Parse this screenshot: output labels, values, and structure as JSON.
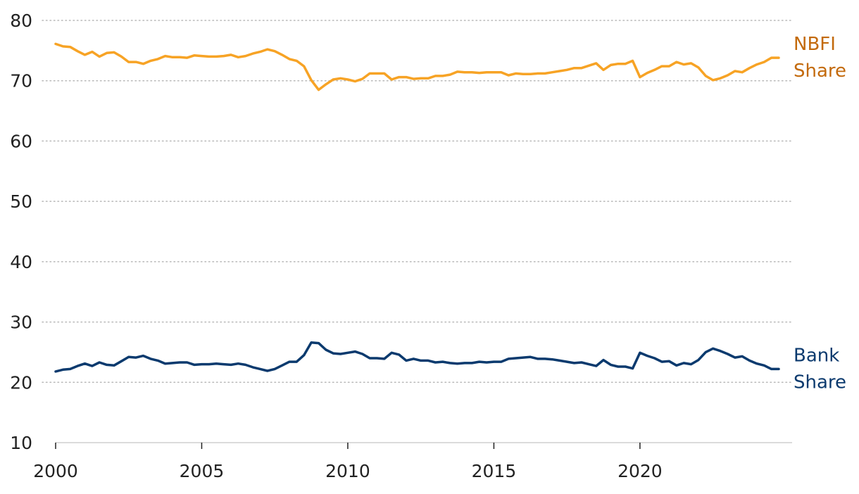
{
  "chart_data": {
    "type": "line",
    "title": "",
    "xlabel": "",
    "ylabel": "",
    "xlim": [
      2000,
      2024.75
    ],
    "ylim": [
      10,
      80
    ],
    "x_ticks": [
      2000,
      2005,
      2010,
      2015,
      2020
    ],
    "y_ticks": [
      10,
      20,
      30,
      40,
      50,
      60,
      70,
      80
    ],
    "grid": "horizontal dotted",
    "legend": "direct labels at right end of lines",
    "series": [
      {
        "name": "NBFI Share",
        "label_lines": [
          "NBFI",
          "Share"
        ],
        "color": "#F7A325",
        "label_color": "#C36A0C",
        "x": [
          2000,
          2000.25,
          2000.5,
          2000.75,
          2001,
          2001.25,
          2001.5,
          2001.75,
          2002,
          2002.25,
          2002.5,
          2002.75,
          2003,
          2003.25,
          2003.5,
          2003.75,
          2004,
          2004.25,
          2004.5,
          2004.75,
          2005,
          2005.25,
          2005.5,
          2005.75,
          2006,
          2006.25,
          2006.5,
          2006.75,
          2007,
          2007.25,
          2007.5,
          2007.75,
          2008,
          2008.25,
          2008.5,
          2008.75,
          2009,
          2009.25,
          2009.5,
          2009.75,
          2010,
          2010.25,
          2010.5,
          2010.75,
          2011,
          2011.25,
          2011.5,
          2011.75,
          2012,
          2012.25,
          2012.5,
          2012.75,
          2013,
          2013.25,
          2013.5,
          2013.75,
          2014,
          2014.25,
          2014.5,
          2014.75,
          2015,
          2015.25,
          2015.5,
          2015.75,
          2016,
          2016.25,
          2016.5,
          2016.75,
          2017,
          2017.25,
          2017.5,
          2017.75,
          2018,
          2018.25,
          2018.5,
          2018.75,
          2019,
          2019.25,
          2019.5,
          2019.75,
          2020,
          2020.25,
          2020.5,
          2020.75,
          2021,
          2021.25,
          2021.5,
          2021.75,
          2022,
          2022.25,
          2022.5,
          2022.75,
          2023,
          2023.25,
          2023.5,
          2023.75,
          2024,
          2024.25,
          2024.5,
          2024.75
        ],
        "values": [
          76.1,
          75.7,
          75.6,
          74.9,
          74.3,
          74.8,
          74.0,
          74.6,
          74.7,
          74.0,
          73.1,
          73.1,
          72.8,
          73.3,
          73.6,
          74.1,
          73.9,
          73.9,
          73.8,
          74.2,
          74.1,
          74.0,
          74.0,
          74.1,
          74.3,
          73.9,
          74.1,
          74.5,
          74.8,
          75.2,
          74.9,
          74.3,
          73.6,
          73.3,
          72.4,
          70.1,
          68.5,
          69.4,
          70.2,
          70.4,
          70.2,
          69.9,
          70.3,
          71.2,
          71.2,
          71.2,
          70.2,
          70.6,
          70.6,
          70.3,
          70.4,
          70.4,
          70.8,
          70.8,
          71.0,
          71.5,
          71.4,
          71.4,
          71.3,
          71.4,
          71.4,
          71.4,
          70.9,
          71.2,
          71.1,
          71.1,
          71.2,
          71.2,
          71.4,
          71.6,
          71.8,
          72.1,
          72.1,
          72.5,
          72.9,
          71.8,
          72.6,
          72.8,
          72.8,
          73.3,
          70.6,
          71.3,
          71.8,
          72.4,
          72.4,
          73.1,
          72.7,
          72.9,
          72.2,
          70.8,
          70.1,
          70.4,
          70.9,
          71.6,
          71.4,
          72.1,
          72.7,
          73.1,
          73.8,
          73.8
        ]
      },
      {
        "name": "Bank Share",
        "label_lines": [
          "Bank",
          "Share"
        ],
        "color": "#0B3A6E",
        "label_color": "#0B3A6E",
        "x": [
          2000,
          2000.25,
          2000.5,
          2000.75,
          2001,
          2001.25,
          2001.5,
          2001.75,
          2002,
          2002.25,
          2002.5,
          2002.75,
          2003,
          2003.25,
          2003.5,
          2003.75,
          2004,
          2004.25,
          2004.5,
          2004.75,
          2005,
          2005.25,
          2005.5,
          2005.75,
          2006,
          2006.25,
          2006.5,
          2006.75,
          2007,
          2007.25,
          2007.5,
          2007.75,
          2008,
          2008.25,
          2008.5,
          2008.75,
          2009,
          2009.25,
          2009.5,
          2009.75,
          2010,
          2010.25,
          2010.5,
          2010.75,
          2011,
          2011.25,
          2011.5,
          2011.75,
          2012,
          2012.25,
          2012.5,
          2012.75,
          2013,
          2013.25,
          2013.5,
          2013.75,
          2014,
          2014.25,
          2014.5,
          2014.75,
          2015,
          2015.25,
          2015.5,
          2015.75,
          2016,
          2016.25,
          2016.5,
          2016.75,
          2017,
          2017.25,
          2017.5,
          2017.75,
          2018,
          2018.25,
          2018.5,
          2018.75,
          2019,
          2019.25,
          2019.5,
          2019.75,
          2020,
          2020.25,
          2020.5,
          2020.75,
          2021,
          2021.25,
          2021.5,
          2021.75,
          2022,
          2022.25,
          2022.5,
          2022.75,
          2023,
          2023.25,
          2023.5,
          2023.75,
          2024,
          2024.25,
          2024.5,
          2024.75
        ],
        "values": [
          21.8,
          22.1,
          22.2,
          22.7,
          23.1,
          22.7,
          23.3,
          22.9,
          22.8,
          23.5,
          24.2,
          24.1,
          24.4,
          23.9,
          23.6,
          23.1,
          23.2,
          23.3,
          23.3,
          22.9,
          23.0,
          23.0,
          23.1,
          23.0,
          22.9,
          23.1,
          22.9,
          22.5,
          22.2,
          21.9,
          22.2,
          22.8,
          23.4,
          23.4,
          24.5,
          26.6,
          26.5,
          25.4,
          24.8,
          24.7,
          24.9,
          25.1,
          24.7,
          24.0,
          24.0,
          23.9,
          24.9,
          24.6,
          23.6,
          23.9,
          23.6,
          23.6,
          23.3,
          23.4,
          23.2,
          23.1,
          23.2,
          23.2,
          23.4,
          23.3,
          23.4,
          23.4,
          23.9,
          24.0,
          24.1,
          24.2,
          23.9,
          23.9,
          23.8,
          23.6,
          23.4,
          23.2,
          23.3,
          23.0,
          22.7,
          23.7,
          22.9,
          22.6,
          22.6,
          22.3,
          24.9,
          24.4,
          24.0,
          23.4,
          23.5,
          22.8,
          23.2,
          23.0,
          23.7,
          25.0,
          25.6,
          25.2,
          24.7,
          24.1,
          24.3,
          23.6,
          23.1,
          22.8,
          22.2,
          22.2
        ]
      }
    ]
  }
}
